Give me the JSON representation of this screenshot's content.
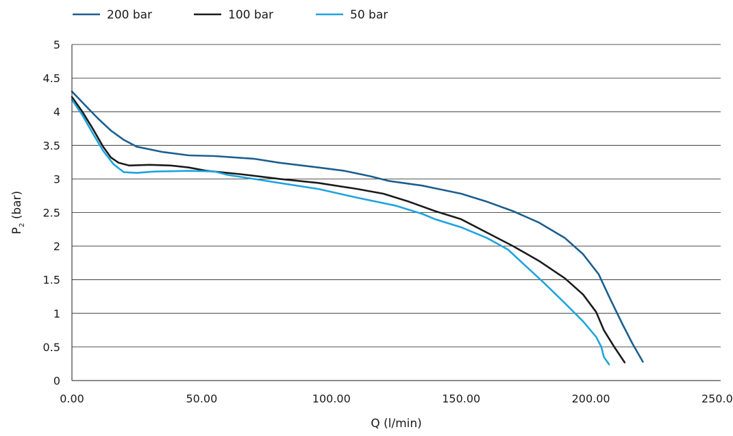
{
  "chart_data": {
    "type": "line",
    "xlabel": "Q (l/min)",
    "ylabel": {
      "main": "P",
      "sub": "2",
      "suffix": " (bar)"
    },
    "xlim": [
      0,
      250
    ],
    "ylim": [
      0,
      5
    ],
    "x_ticks": [
      "0.00",
      "50.00",
      "100.00",
      "150.00",
      "200.00",
      "250.00"
    ],
    "y_ticks": [
      "0",
      "0.5",
      "1",
      "1.5",
      "2",
      "2.5",
      "3",
      "3.5",
      "4",
      "4.5",
      "5"
    ],
    "grid": "horizontal",
    "legend_position": "top-left",
    "series": [
      {
        "name": "200 bar",
        "color": "#1b5e8e",
        "points": [
          [
            0,
            4.3
          ],
          [
            5,
            4.1
          ],
          [
            10,
            3.9
          ],
          [
            15,
            3.72
          ],
          [
            20,
            3.58
          ],
          [
            25,
            3.48
          ],
          [
            35,
            3.4
          ],
          [
            45,
            3.35
          ],
          [
            55,
            3.34
          ],
          [
            70,
            3.3
          ],
          [
            80,
            3.24
          ],
          [
            95,
            3.17
          ],
          [
            105,
            3.12
          ],
          [
            115,
            3.04
          ],
          [
            122,
            2.97
          ],
          [
            135,
            2.9
          ],
          [
            150,
            2.78
          ],
          [
            160,
            2.66
          ],
          [
            170,
            2.52
          ],
          [
            180,
            2.35
          ],
          [
            190,
            2.12
          ],
          [
            197,
            1.88
          ],
          [
            203,
            1.58
          ],
          [
            207,
            1.25
          ],
          [
            212,
            0.85
          ],
          [
            216,
            0.55
          ],
          [
            220,
            0.28
          ]
        ]
      },
      {
        "name": "100 bar",
        "color": "#1a1a1a",
        "points": [
          [
            0,
            4.22
          ],
          [
            4,
            4.0
          ],
          [
            8,
            3.75
          ],
          [
            12,
            3.48
          ],
          [
            15,
            3.32
          ],
          [
            18,
            3.24
          ],
          [
            22,
            3.2
          ],
          [
            30,
            3.21
          ],
          [
            38,
            3.2
          ],
          [
            45,
            3.17
          ],
          [
            52,
            3.12
          ],
          [
            65,
            3.07
          ],
          [
            80,
            3.0
          ],
          [
            95,
            2.94
          ],
          [
            110,
            2.85
          ],
          [
            120,
            2.78
          ],
          [
            130,
            2.66
          ],
          [
            140,
            2.52
          ],
          [
            150,
            2.4
          ],
          [
            160,
            2.2
          ],
          [
            170,
            2.0
          ],
          [
            180,
            1.78
          ],
          [
            190,
            1.52
          ],
          [
            197,
            1.28
          ],
          [
            202,
            1.02
          ],
          [
            205,
            0.75
          ],
          [
            209,
            0.5
          ],
          [
            213,
            0.27
          ]
        ]
      },
      {
        "name": "50 bar",
        "color": "#1ea3df",
        "points": [
          [
            0,
            4.18
          ],
          [
            4,
            3.95
          ],
          [
            8,
            3.68
          ],
          [
            12,
            3.42
          ],
          [
            16,
            3.22
          ],
          [
            20,
            3.1
          ],
          [
            25,
            3.09
          ],
          [
            32,
            3.11
          ],
          [
            45,
            3.12
          ],
          [
            55,
            3.11
          ],
          [
            60,
            3.06
          ],
          [
            70,
            3.0
          ],
          [
            80,
            2.94
          ],
          [
            95,
            2.85
          ],
          [
            110,
            2.72
          ],
          [
            125,
            2.6
          ],
          [
            135,
            2.48
          ],
          [
            140,
            2.4
          ],
          [
            150,
            2.28
          ],
          [
            160,
            2.12
          ],
          [
            168,
            1.95
          ],
          [
            175,
            1.7
          ],
          [
            182,
            1.45
          ],
          [
            190,
            1.15
          ],
          [
            197,
            0.88
          ],
          [
            202,
            0.65
          ],
          [
            204,
            0.5
          ],
          [
            205,
            0.35
          ],
          [
            207,
            0.24
          ]
        ]
      }
    ]
  }
}
